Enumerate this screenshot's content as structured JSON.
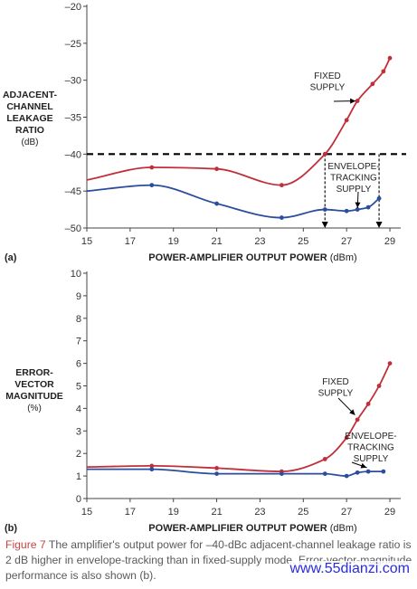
{
  "chart_data": [
    {
      "type": "line",
      "panel_label": "(a)",
      "ylabel_lines": [
        "ADJACENT-",
        "CHANNEL",
        "LEAKAGE",
        "RATIO",
        "(dB)"
      ],
      "xlabel_bold": "POWER-AMPLIFIER OUTPUT POWER",
      "xlabel_unit": "(dBm)",
      "xlim": [
        15,
        29.5
      ],
      "ylim": [
        -50,
        -20
      ],
      "xticks": [
        15,
        17,
        19,
        21,
        23,
        25,
        27,
        29
      ],
      "yticks": [
        -20,
        -25,
        -30,
        -35,
        -40,
        -45,
        -50
      ],
      "ytick_labels": [
        "–20",
        "–25",
        "–30",
        "–35",
        "–40",
        "–45",
        "–50"
      ],
      "threshold": -40,
      "threshold_drops": [
        26,
        28.5
      ],
      "series": [
        {
          "name": "FIXED SUPPLY",
          "label_lines": [
            "FIXED",
            "SUPPLY"
          ],
          "color": "#c0303a",
          "x": [
            15,
            18,
            21,
            24,
            26,
            27,
            27.5,
            28.2,
            28.7,
            29
          ],
          "y": [
            -43.5,
            -41.8,
            -42,
            -44.2,
            -40,
            -35.4,
            -32.8,
            -30.5,
            -28.8,
            -27
          ]
        },
        {
          "name": "ENVELOPE-TRACKING SUPPLY",
          "label_lines": [
            "ENVELOPE-",
            "TRACKING",
            "SUPPLY"
          ],
          "color": "#2a4d9e",
          "x": [
            15,
            18,
            21,
            24,
            26,
            27,
            27.5,
            28,
            28.5
          ],
          "y": [
            -45,
            -44.2,
            -46.7,
            -48.6,
            -47.5,
            -47.7,
            -47.5,
            -47.2,
            -46
          ]
        }
      ]
    },
    {
      "type": "line",
      "panel_label": "(b)",
      "ylabel_lines": [
        "ERROR-",
        "VECTOR",
        "MAGNITUDE",
        "(%)"
      ],
      "xlabel_bold": "POWER-AMPLIFIER OUTPUT POWER",
      "xlabel_unit": "(dBm)",
      "xlim": [
        15,
        29.5
      ],
      "ylim": [
        0,
        10
      ],
      "xticks": [
        15,
        17,
        19,
        21,
        23,
        25,
        27,
        29
      ],
      "yticks": [
        0,
        1,
        2,
        3,
        4,
        5,
        6,
        7,
        8,
        9,
        10
      ],
      "ytick_labels": [
        "0",
        "1",
        "2",
        "3",
        "4",
        "5",
        "6",
        "7",
        "8",
        "9",
        "10"
      ],
      "series": [
        {
          "name": "FIXED SUPPLY",
          "label_lines": [
            "FIXED",
            "SUPPLY"
          ],
          "color": "#c0303a",
          "x": [
            15,
            18,
            21,
            24,
            26,
            27,
            27.5,
            28,
            28.5,
            29
          ],
          "y": [
            1.4,
            1.45,
            1.35,
            1.2,
            1.75,
            2.7,
            3.5,
            4.2,
            5,
            6
          ]
        },
        {
          "name": "ENVELOPE-TRACKING SUPPLY",
          "label_lines": [
            "ENVELOPE-",
            "TRACKING",
            "SUPPLY"
          ],
          "color": "#2a4d9e",
          "x": [
            15,
            18,
            21,
            24,
            26,
            27,
            27.5,
            28,
            28.7
          ],
          "y": [
            1.3,
            1.3,
            1.1,
            1.1,
            1.1,
            1.0,
            1.15,
            1.2,
            1.2
          ]
        }
      ]
    }
  ],
  "caption": {
    "figure_label": "Figure 7",
    "text": " The amplifier's output power for –40-dBc adjacent-channel leakage ratio is 2 dB higher in envelope-tracking than in fixed-supply mode. Error-vector-magnitude performance is also shown (b)."
  },
  "watermark": "www.55dianzi.com"
}
